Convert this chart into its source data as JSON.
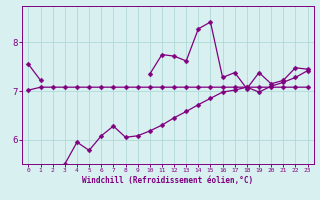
{
  "x": [
    0,
    1,
    2,
    3,
    4,
    5,
    6,
    7,
    8,
    9,
    10,
    11,
    12,
    13,
    14,
    15,
    16,
    17,
    18,
    19,
    20,
    21,
    22,
    23
  ],
  "line1": [
    7.55,
    7.22,
    null,
    null,
    null,
    null,
    null,
    null,
    null,
    null,
    7.35,
    7.75,
    7.72,
    7.62,
    8.28,
    8.42,
    7.28,
    7.38,
    7.05,
    7.38,
    7.15,
    7.22,
    7.48,
    7.45
  ],
  "line2": [
    7.02,
    7.08,
    7.08,
    7.08,
    7.08,
    7.08,
    7.08,
    7.08,
    7.08,
    7.08,
    7.08,
    7.08,
    7.08,
    7.08,
    7.08,
    7.08,
    7.08,
    7.08,
    7.08,
    7.08,
    7.08,
    7.08,
    7.08,
    7.08
  ],
  "line3": [
    null,
    null,
    null,
    5.5,
    5.95,
    5.78,
    6.08,
    6.28,
    6.05,
    6.08,
    6.18,
    6.3,
    6.45,
    6.58,
    6.72,
    6.85,
    6.98,
    7.02,
    7.08,
    6.98,
    7.1,
    7.18,
    7.28,
    7.42
  ],
  "line_color": "#800080",
  "bg_color": "#d8f0f0",
  "grid_color": "#aad4d4",
  "xlabel": "Windchill (Refroidissement éolien,°C)",
  "xlim": [
    -0.5,
    23.5
  ],
  "ylim": [
    5.5,
    8.75
  ],
  "yticks": [
    6,
    7,
    8
  ],
  "xticks": [
    0,
    1,
    2,
    3,
    4,
    5,
    6,
    7,
    8,
    9,
    10,
    11,
    12,
    13,
    14,
    15,
    16,
    17,
    18,
    19,
    20,
    21,
    22,
    23
  ],
  "marker": "D",
  "marker_size": 2.5,
  "line_width": 0.9
}
